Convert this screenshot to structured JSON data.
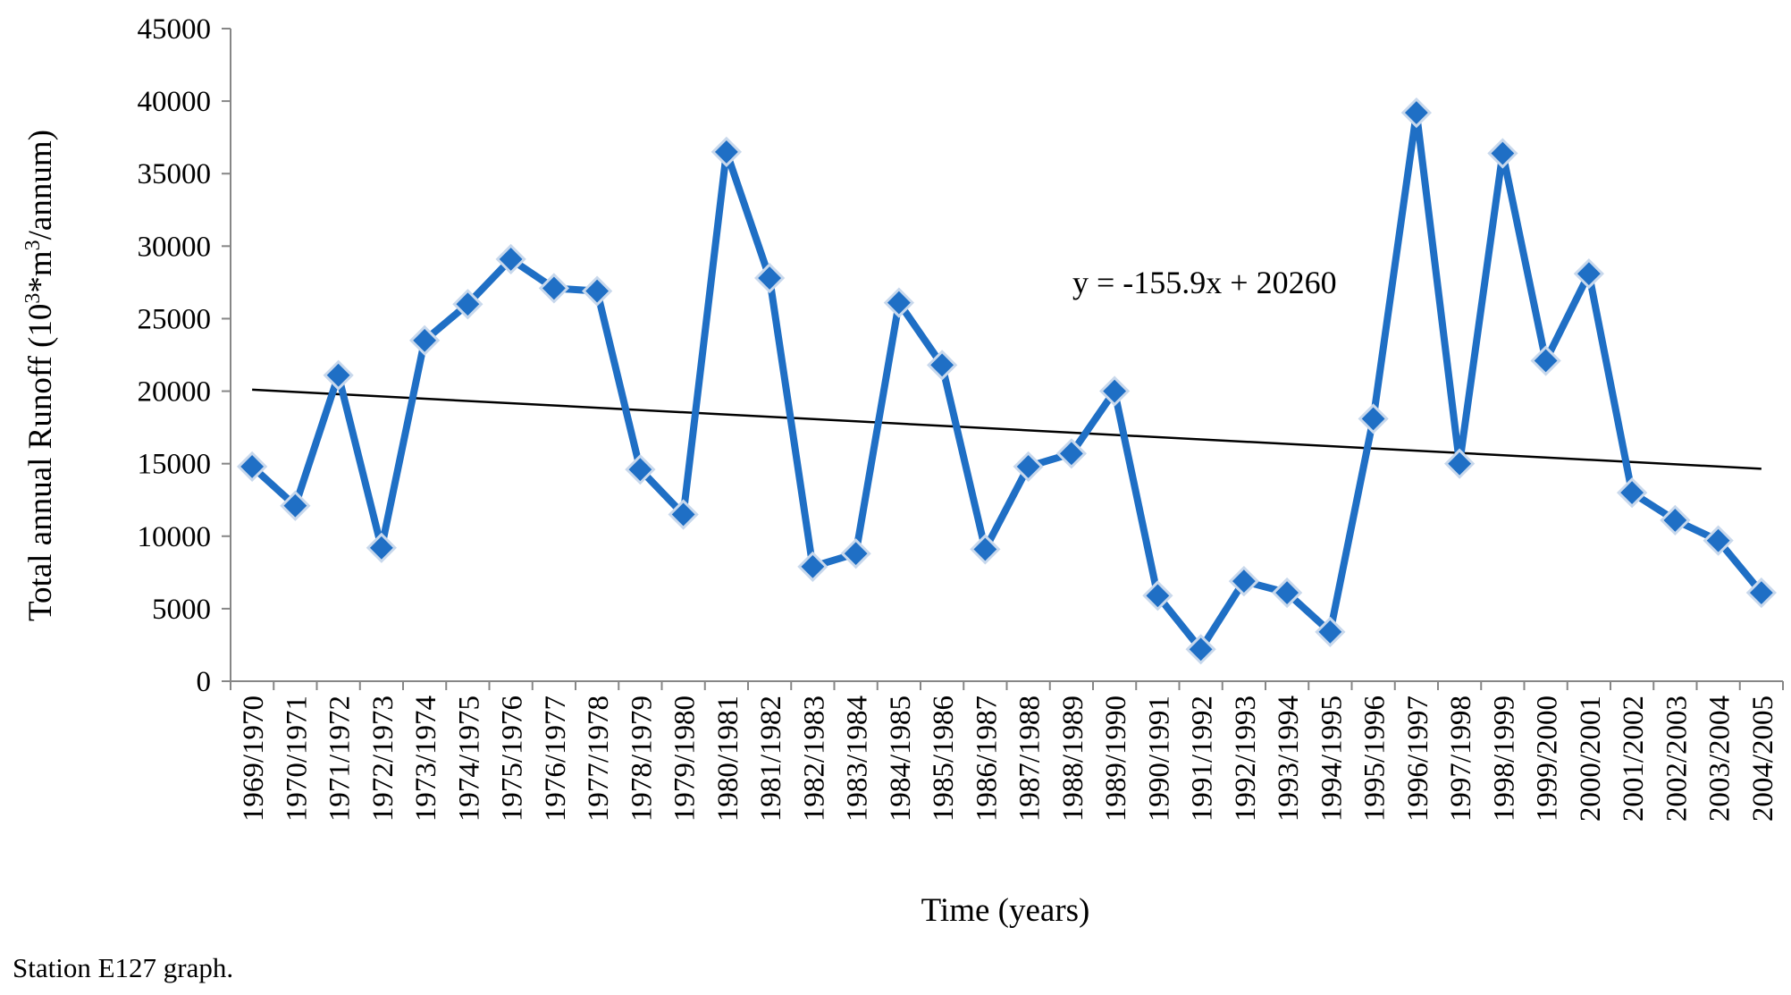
{
  "caption": "Station E127 graph.",
  "chart_data": {
    "type": "line",
    "title": "",
    "xlabel": "Time (years)",
    "ylabel_main": "Total annual Runoff (10",
    "ylabel_sup": "3",
    "ylabel_mid": "*m",
    "ylabel_sup2": "3",
    "ylabel_end": "/annum)",
    "ylim": [
      0,
      45000
    ],
    "yticks": [
      0,
      5000,
      10000,
      15000,
      20000,
      25000,
      30000,
      35000,
      40000,
      45000
    ],
    "grid": false,
    "legend": "none",
    "categories": [
      "1969/1970",
      "1970/1971",
      "1971/1972",
      "1972/1973",
      "1973/1974",
      "1974/1975",
      "1975/1976",
      "1976/1977",
      "1977/1978",
      "1978/1979",
      "1979/1980",
      "1980/1981",
      "1981/1982",
      "1982/1983",
      "1983/1984",
      "1984/1985",
      "1985/1986",
      "1986/1987",
      "1987/1988",
      "1988/1989",
      "1989/1990",
      "1990/1991",
      "1991/1992",
      "1992/1993",
      "1993/1994",
      "1994/1995",
      "1995/1996",
      "1996/1997",
      "1997/1998",
      "1998/1999",
      "1999/2000",
      "2000/2001",
      "2001/2002",
      "2002/2003",
      "2003/2004",
      "2004/2005"
    ],
    "series": [
      {
        "color": "#1f6fc5",
        "values": [
          14800,
          12100,
          21100,
          9200,
          23500,
          26000,
          29100,
          27100,
          26900,
          14600,
          11500,
          36500,
          27800,
          7900,
          8800,
          26100,
          21800,
          9100,
          14800,
          15700,
          20000,
          5900,
          2200,
          6900,
          6100,
          3400,
          18100,
          39200,
          15000,
          36400,
          22100,
          28100,
          13000,
          11100,
          9700,
          6100
        ]
      }
    ],
    "trendline": {
      "equation": "y = -155.9x + 20260",
      "slope": -155.9,
      "intercept": 20260,
      "color": "#000000"
    }
  }
}
